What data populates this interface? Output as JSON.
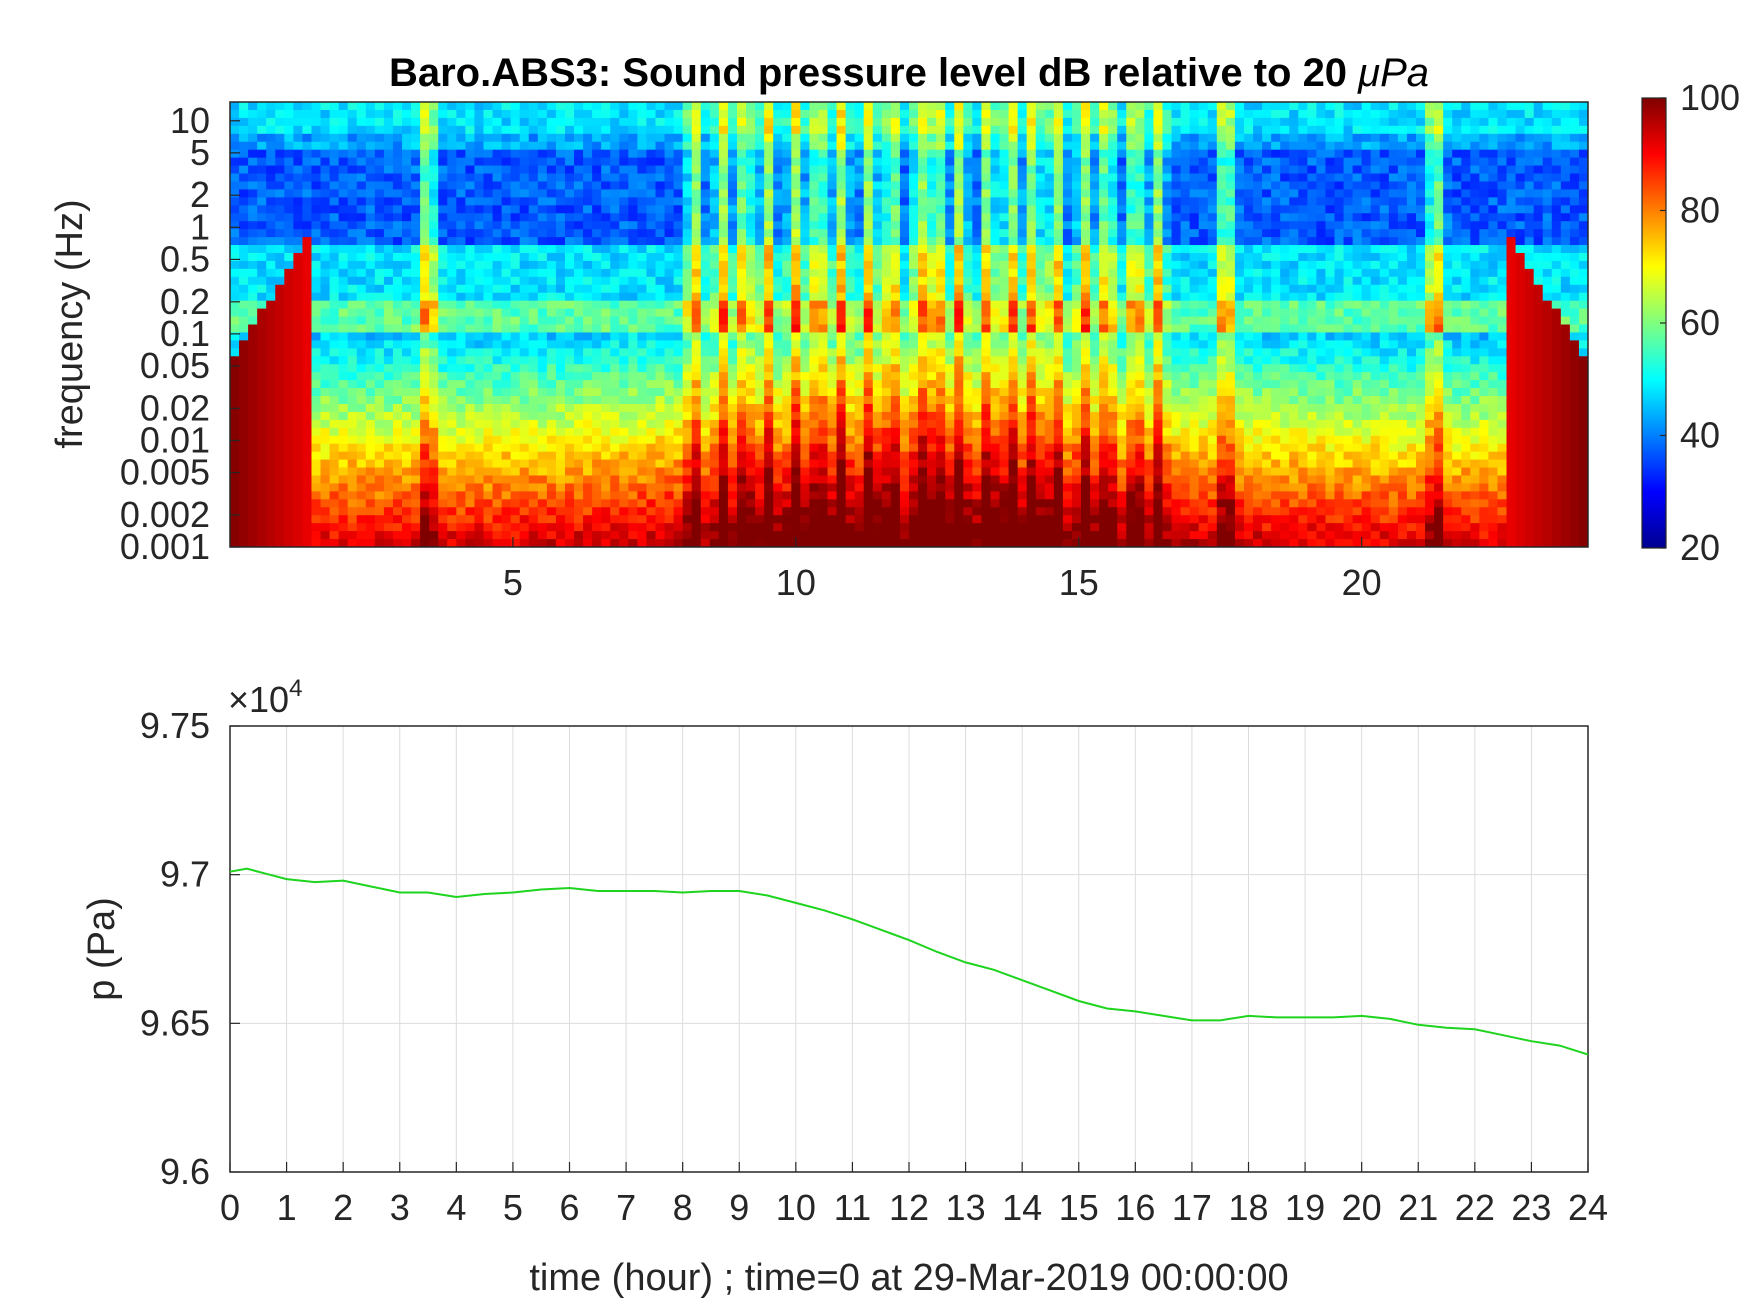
{
  "chart_data": [
    {
      "type": "heatmap",
      "title": "Baro.ABS3: Sound pressure level dB relative to 20 μPa",
      "title_prefix": "Baro.ABS3: Sound pressure level dB relative to 20 ",
      "title_unit": "μPa",
      "xlabel": "",
      "ylabel": "frequency (Hz)",
      "xlim": [
        0,
        24
      ],
      "ylim": [
        0.001,
        15
      ],
      "y_scale": "log",
      "x_ticks": [
        "5",
        "10",
        "15",
        "20"
      ],
      "y_ticks": [
        "10",
        "5",
        "2",
        "1",
        "0.5",
        "0.2",
        "0.1",
        "0.05",
        "0.02",
        "0.01",
        "0.005",
        "0.002",
        "0.001"
      ],
      "colormap": "jet",
      "colorbar": {
        "range": [
          20,
          100
        ],
        "ticks": [
          "100",
          "80",
          "60",
          "40",
          "20"
        ]
      },
      "burst_hours": [
        3.5,
        8.2,
        8.7,
        9.1,
        9.5,
        10.0,
        10.4,
        10.8,
        11.3,
        11.7,
        12.2,
        12.5,
        12.9,
        13.4,
        13.8,
        14.2,
        14.6,
        15.1,
        15.5,
        16.0,
        16.4,
        17.6,
        21.3
      ],
      "grid": false
    },
    {
      "type": "line",
      "title": "",
      "xlabel": "time (hour) ; time=0 at 29-Mar-2019 00:00:00",
      "ylabel": "p (Pa)",
      "y_exponent_label": "×10",
      "y_exponent": "4",
      "xlim": [
        0,
        24
      ],
      "ylim": [
        96000,
        97500
      ],
      "x_ticks": [
        "0",
        "1",
        "2",
        "3",
        "4",
        "5",
        "6",
        "7",
        "8",
        "9",
        "10",
        "11",
        "12",
        "13",
        "14",
        "15",
        "16",
        "17",
        "18",
        "19",
        "20",
        "21",
        "22",
        "23",
        "24"
      ],
      "y_ticks": [
        "9.75",
        "9.7",
        "9.65",
        "9.6"
      ],
      "grid": true,
      "series": [
        {
          "color": "#1ed41e",
          "x": [
            0,
            0.3,
            0.6,
            1,
            1.5,
            2,
            2.5,
            3,
            3.5,
            4,
            4.5,
            5,
            5.5,
            6,
            6.5,
            7,
            7.5,
            8,
            8.5,
            9,
            9.5,
            10,
            10.5,
            11,
            11.5,
            12,
            12.5,
            13,
            13.5,
            14,
            14.5,
            15,
            15.5,
            16,
            16.5,
            17,
            17.5,
            18,
            18.5,
            19,
            19.5,
            20,
            20.5,
            21,
            21.5,
            22,
            22.5,
            23,
            23.5,
            24
          ],
          "y": [
            97010,
            97020,
            97005,
            96985,
            96975,
            96980,
            96960,
            96940,
            96940,
            96925,
            96935,
            96940,
            96950,
            96955,
            96945,
            96945,
            96945,
            96940,
            96945,
            96945,
            96930,
            96905,
            96880,
            96850,
            96815,
            96780,
            96740,
            96705,
            96680,
            96645,
            96610,
            96575,
            96550,
            96540,
            96525,
            96510,
            96510,
            96525,
            96520,
            96520,
            96520,
            96525,
            96515,
            96495,
            96485,
            96480,
            96460,
            96440,
            96425,
            96395
          ]
        }
      ]
    }
  ]
}
